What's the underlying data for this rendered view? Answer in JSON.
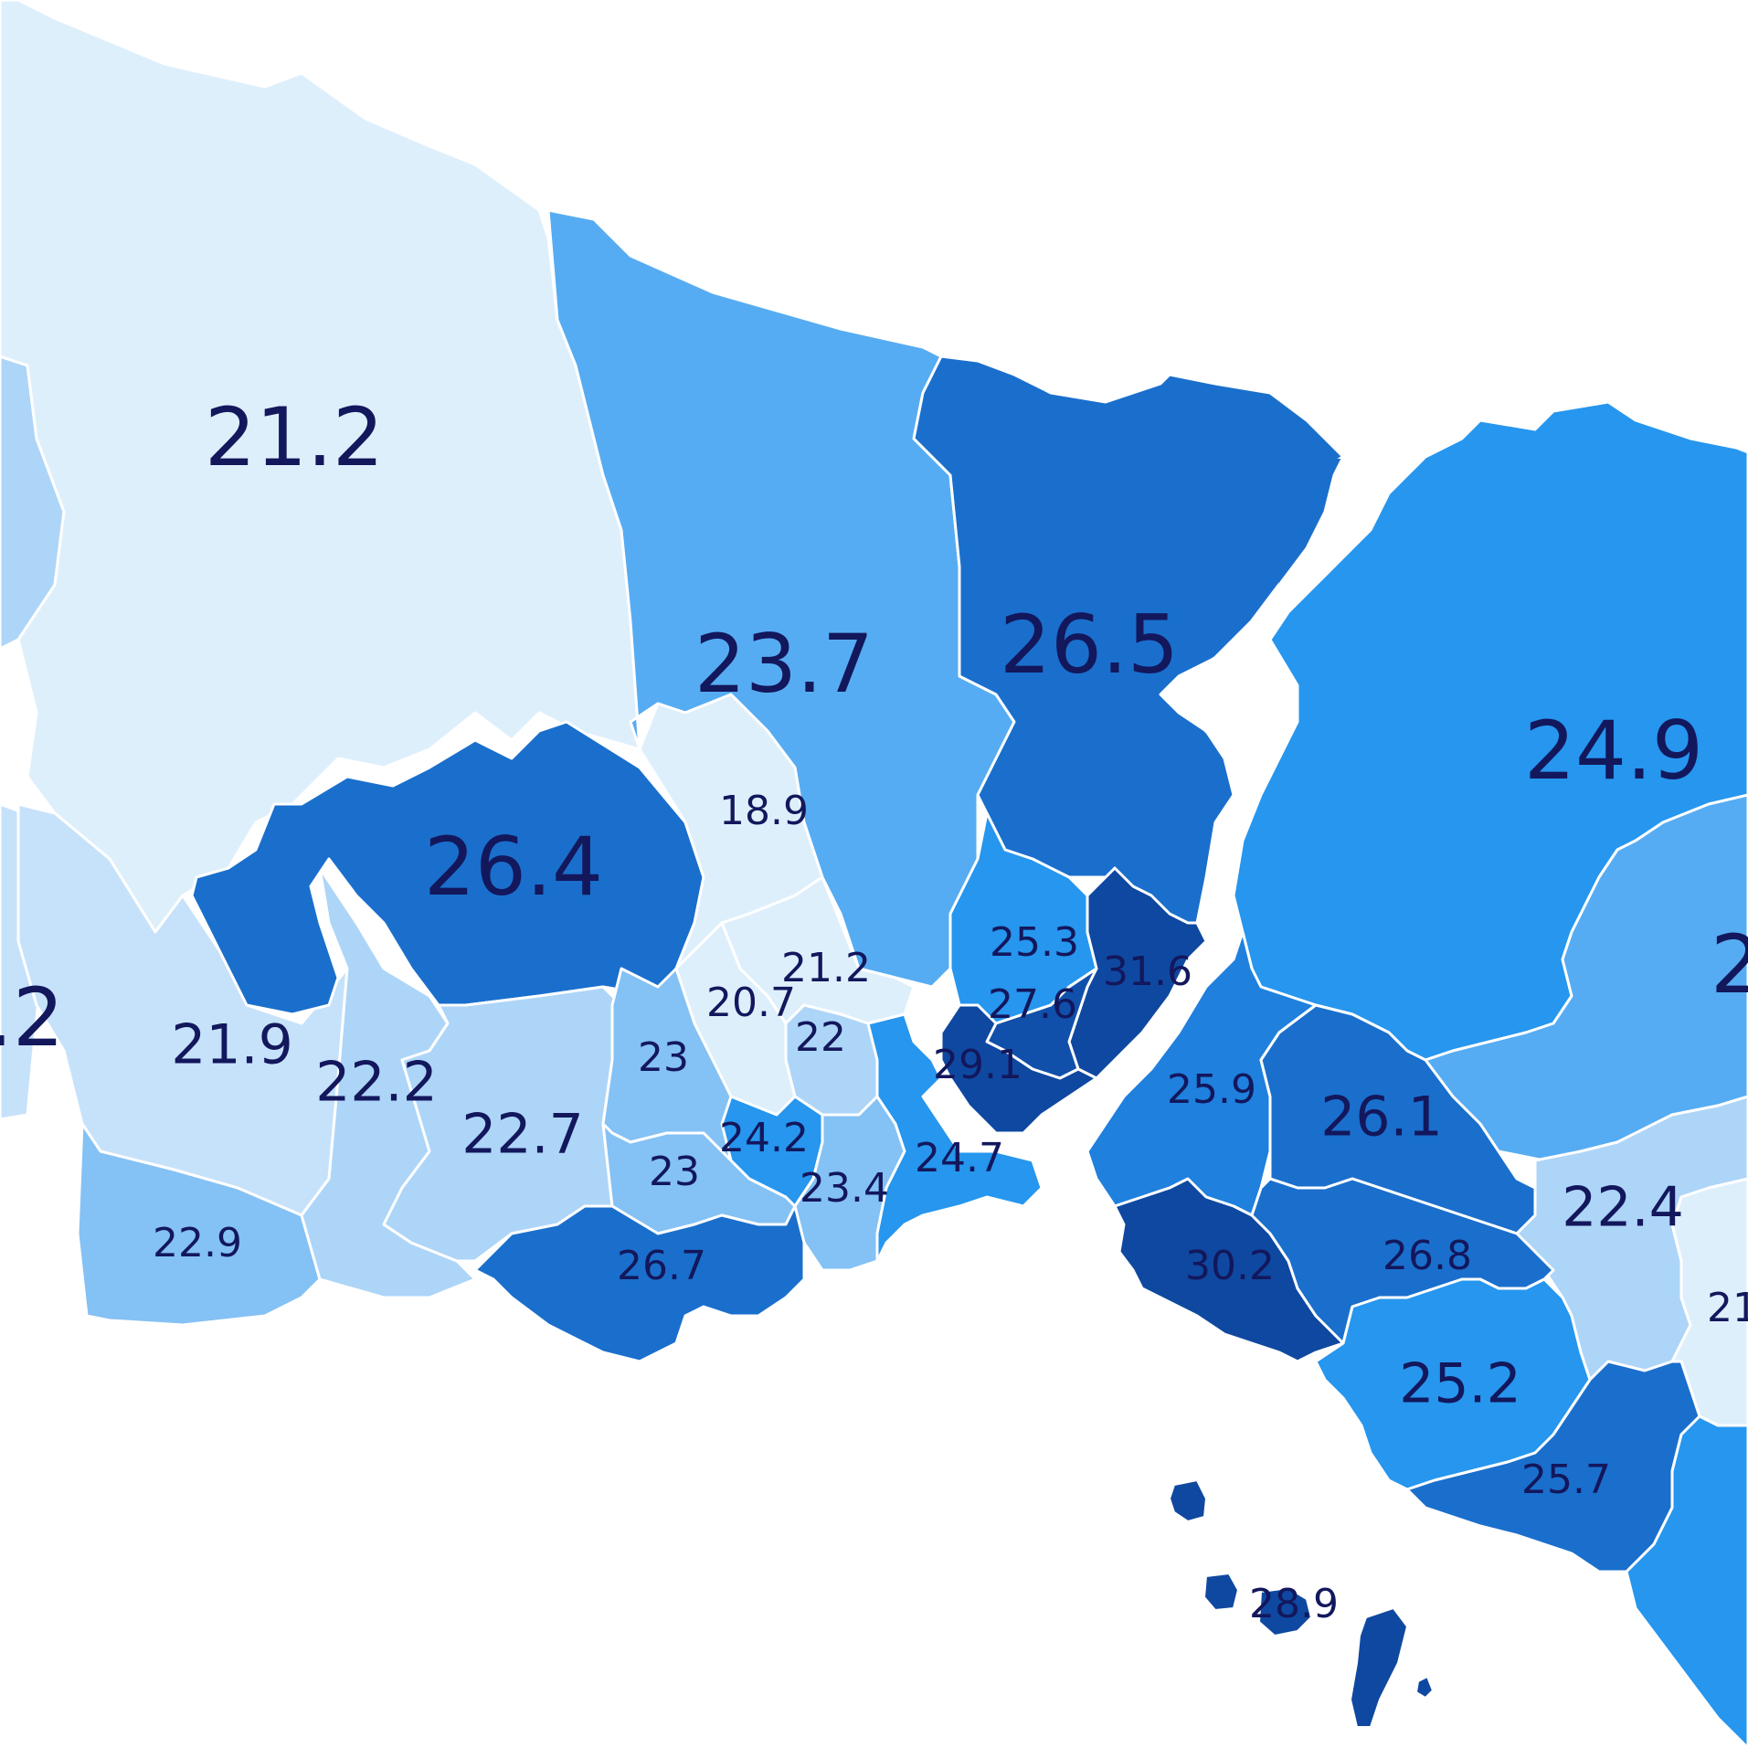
{
  "map": {
    "scale_colors": {
      "c1": "#deeffc",
      "c2": "#c6e2fb",
      "c3": "#add5f8",
      "c4": "#84c1f4",
      "c5": "#56acf2",
      "c6": "#2696ee",
      "c7": "#1f80dd",
      "c8": "#1a6fcc",
      "c9": "#1150aa",
      "c10": "#0f48a0",
      "water": "#ffffff",
      "border": "#ffffff",
      "label": "#13175c"
    },
    "district_labels": {
      "nw": "21.2",
      "far_w": ".2",
      "n_center": "23.7",
      "arnavutkoy": "26.4",
      "kemerburgaz": "18.9",
      "sariyer": "26.5",
      "beykoz": "24.9",
      "far_e": "2",
      "w1": "21.9",
      "w2": "22.2",
      "w3": "22.7",
      "sw": "22.9",
      "c1": "23",
      "c2": "23",
      "c3": "20.7",
      "c4": "21.2",
      "c5": "22",
      "c6": "24.2",
      "c7": "23.4",
      "bakirkoy": "26.7",
      "sisli": "25.3",
      "besiktas": "31.6",
      "beyoglu": "27.6",
      "fatih": "29.1",
      "zeytinburnu": "24.7",
      "umraniye": "25.9",
      "cekmekoy": "26.1",
      "sancaktepe": "22.4",
      "kadikoy": "30.2",
      "atasehir": "26.8",
      "maltepe": "25.2",
      "e_edge": "21",
      "kartal": "25.7",
      "adalar": "28.9"
    }
  }
}
